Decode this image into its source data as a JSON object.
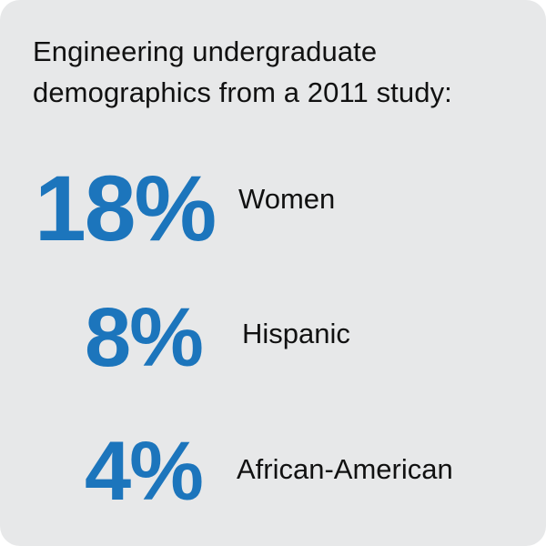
{
  "heading": {
    "line1": "Engineering undergraduate",
    "line2": "demographics from a 2011 study:"
  },
  "stats": [
    {
      "value": "18%",
      "label": "Women"
    },
    {
      "value": "8%",
      "label": "Hispanic"
    },
    {
      "value": "4%",
      "label": "African-American"
    }
  ],
  "colors": {
    "background": "#e7e8e9",
    "accent": "#1c75bc",
    "text": "#111111"
  }
}
